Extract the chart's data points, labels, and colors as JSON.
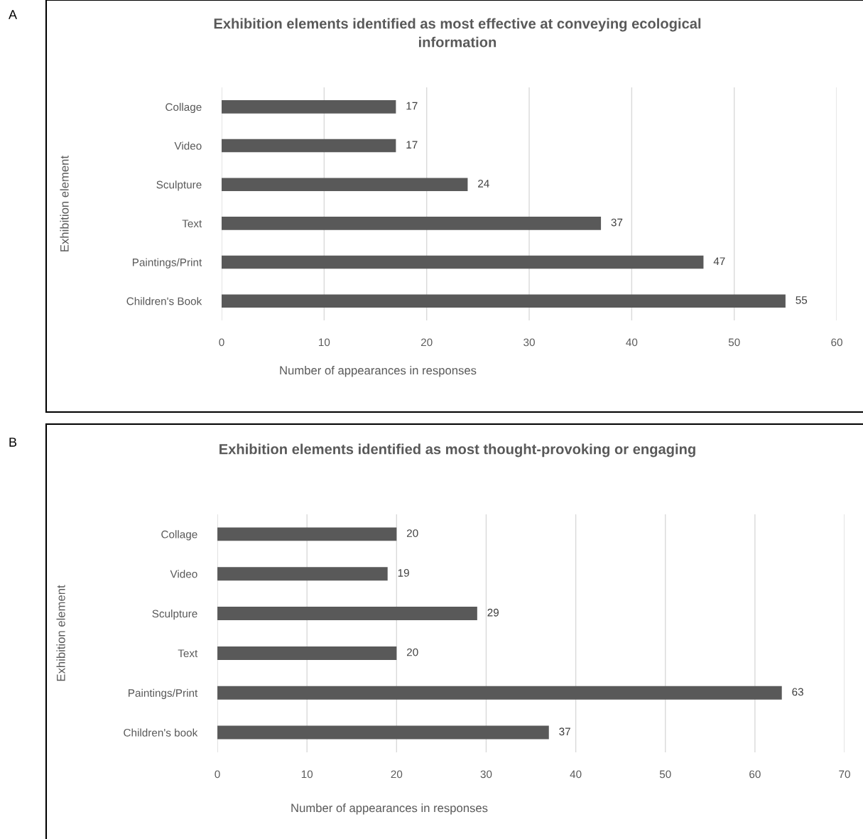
{
  "chart_data": [
    {
      "type": "bar",
      "orientation": "horizontal",
      "title": "Exhibition elements identified as most effective at conveying ecological\ninformation",
      "xlabel": "Number of appearances in responses",
      "ylabel": "Exhibition element",
      "categories": [
        "Collage",
        "Video",
        "Sculpture",
        "Text",
        "Paintings/Print",
        "Children's Book"
      ],
      "values": [
        17,
        17,
        24,
        37,
        47,
        55
      ],
      "color": "#595959",
      "xlim": [
        0,
        60
      ],
      "xticks": [
        0,
        10,
        20,
        30,
        40,
        50,
        60
      ],
      "grid": "x",
      "data_labels": true,
      "annotations": [
        "A"
      ]
    },
    {
      "type": "bar",
      "orientation": "horizontal",
      "title": "Exhibition elements identified as most thought-provoking or engaging",
      "xlabel": "Number of appearances in responses",
      "ylabel": "Exhibition element",
      "categories": [
        "Collage",
        "Video",
        "Sculpture",
        "Text",
        "Paintings/Print",
        "Children's book"
      ],
      "values": [
        20,
        19,
        29,
        20,
        63,
        37
      ],
      "color": "#595959",
      "xlim": [
        0,
        70
      ],
      "xticks": [
        0,
        10,
        20,
        30,
        40,
        50,
        60,
        70
      ],
      "grid": "x",
      "data_labels": true,
      "annotations": [
        "B"
      ]
    }
  ]
}
